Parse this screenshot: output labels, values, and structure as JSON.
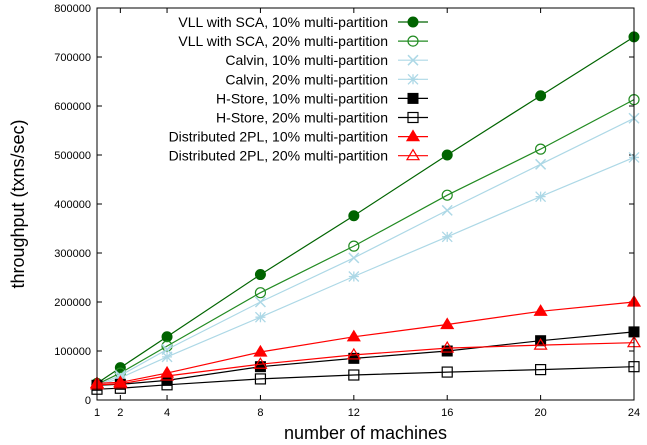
{
  "chart_data": {
    "type": "line",
    "xlabel": "number of machines",
    "ylabel": "throughput (txns/sec)",
    "xlim": [
      1,
      24
    ],
    "ylim": [
      0,
      800000
    ],
    "x_ticks": [
      1,
      2,
      4,
      8,
      12,
      16,
      20,
      24
    ],
    "y_ticks": [
      0,
      100000,
      200000,
      300000,
      400000,
      500000,
      600000,
      700000,
      800000
    ],
    "legend_position": "top-right",
    "grid": false,
    "x": [
      1,
      2,
      4,
      8,
      12,
      16,
      20,
      24
    ],
    "series": [
      {
        "name": "VLL with SCA, 10% multi-partition",
        "color": "#006400",
        "marker": "filled-circle",
        "values": [
          34000,
          66000,
          129000,
          256000,
          376000,
          500000,
          621000,
          741000
        ]
      },
      {
        "name": "VLL with SCA, 20% multi-partition",
        "color": "#228b22",
        "marker": "open-circle",
        "values": [
          32000,
          55000,
          110000,
          219000,
          314000,
          418000,
          512000,
          613000
        ]
      },
      {
        "name": "Calvin, 10% multi-partition",
        "color": "#add8e6",
        "marker": "x",
        "values": [
          30000,
          50000,
          103000,
          200000,
          290000,
          387000,
          481000,
          575000
        ]
      },
      {
        "name": "Calvin, 20% multi-partition",
        "color": "#add8e6",
        "marker": "asterisk",
        "values": [
          28000,
          45000,
          88000,
          169000,
          252000,
          333000,
          415000,
          495000
        ]
      },
      {
        "name": "H-Store, 10% multi-partition",
        "color": "#000000",
        "marker": "filled-square",
        "values": [
          30000,
          32000,
          40000,
          68000,
          85000,
          100000,
          121000,
          139000
        ]
      },
      {
        "name": "H-Store, 20% multi-partition",
        "color": "#000000",
        "marker": "open-square",
        "values": [
          22000,
          24000,
          31000,
          43000,
          51000,
          57000,
          62000,
          68000
        ]
      },
      {
        "name": "Distributed 2PL, 10% multi-partition",
        "color": "#ff0000",
        "marker": "filled-triangle",
        "values": [
          34000,
          36000,
          55000,
          98000,
          129000,
          154000,
          181000,
          200000
        ]
      },
      {
        "name": "Distributed 2PL, 20% multi-partition",
        "color": "#ff0000",
        "marker": "open-triangle",
        "values": [
          31000,
          33000,
          49000,
          73000,
          92000,
          106000,
          112000,
          117000
        ]
      }
    ]
  }
}
